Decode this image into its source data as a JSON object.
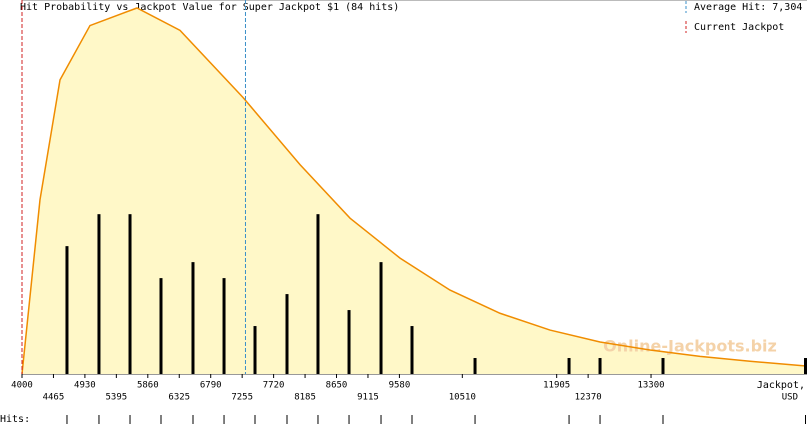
{
  "chart_data": {
    "type": "bar",
    "title": "Hit Probability vs Jackpot Value for Super Jackpot $1 (84 hits)",
    "x": [
      4665,
      5138,
      5597,
      6055,
      6528,
      6987,
      7445,
      7918,
      8376,
      8835,
      9308,
      9766,
      10698,
      12088,
      12546,
      13477,
      15591
    ],
    "values": [
      8,
      10,
      10,
      6,
      7,
      6,
      3,
      5,
      10,
      4,
      7,
      3,
      1,
      1,
      1,
      1,
      1
    ],
    "color": "#000000",
    "curve": {
      "color": "#f08c00",
      "fill": "#fff8c8",
      "x": [
        4000,
        4266,
        4562,
        5005,
        5700,
        6336,
        7268,
        8110,
        8850,
        9589,
        10328,
        11067,
        11806,
        12546,
        13285,
        14024,
        14763,
        15591
      ],
      "values": [
        0,
        10.9,
        18.4,
        21.8,
        22.9,
        21.5,
        17.3,
        13.1,
        9.75,
        7.25,
        5.25,
        3.8,
        2.75,
        2.0,
        1.5,
        1.1,
        0.8,
        0.5
      ]
    },
    "xlim": [
      4000,
      15606
    ],
    "ylim": [
      0,
      23.4
    ],
    "xticks": [
      4000,
      4465,
      4930,
      5395,
      5860,
      6325,
      6790,
      7255,
      7720,
      8185,
      8650,
      9115,
      9580,
      10510,
      11905,
      12370,
      13300
    ],
    "x_label": [
      "Jackpot,",
      "USD"
    ],
    "average": {
      "value": 7304,
      "label": "Average Hit: 7,304",
      "color": "#3a8fc8"
    },
    "current": {
      "value": 4000,
      "label": "Current Jackpot",
      "color": "#d02020"
    },
    "watermark": "Online-Jackpots.biz",
    "rug_label": "Hits:"
  }
}
